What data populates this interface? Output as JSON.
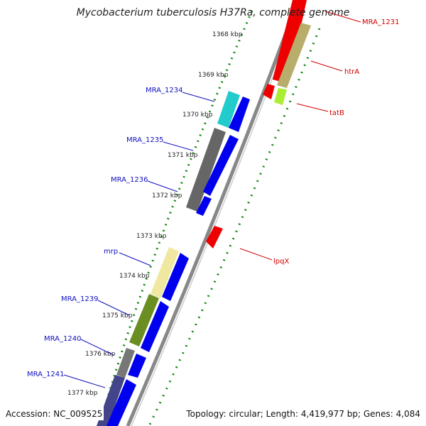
{
  "header": {
    "title": "Mycobacterium tuberculosis H37Ra, complete genome"
  },
  "footer": {
    "accession": "Accession: NC_009525",
    "summary": "Topology: circular; Length: 4,419,977 bp; Genes: 4,084"
  },
  "kbp_ticks": [
    "1368 kbp",
    "1369 kbp",
    "1370 kbp",
    "1371 kbp",
    "1372 kbp",
    "1373 kbp",
    "1374 kbp",
    "1375 kbp",
    "1376 kbp",
    "1377 kbp"
  ],
  "genes_left": [
    "MRA_1234",
    "MRA_1235",
    "MRA_1236",
    "mrp",
    "MRA_1239",
    "MRA_1240",
    "MRA_1241"
  ],
  "genes_right": [
    "MRA_1231",
    "htrA",
    "tatB",
    "lpqX"
  ],
  "colors": {
    "forward_cds": "#0000ee",
    "reverse_cds": "#ee0000",
    "backbone": "#888888",
    "gc_dots": "#118811",
    "label_blue": "#1010c0",
    "label_red": "#d00000"
  }
}
